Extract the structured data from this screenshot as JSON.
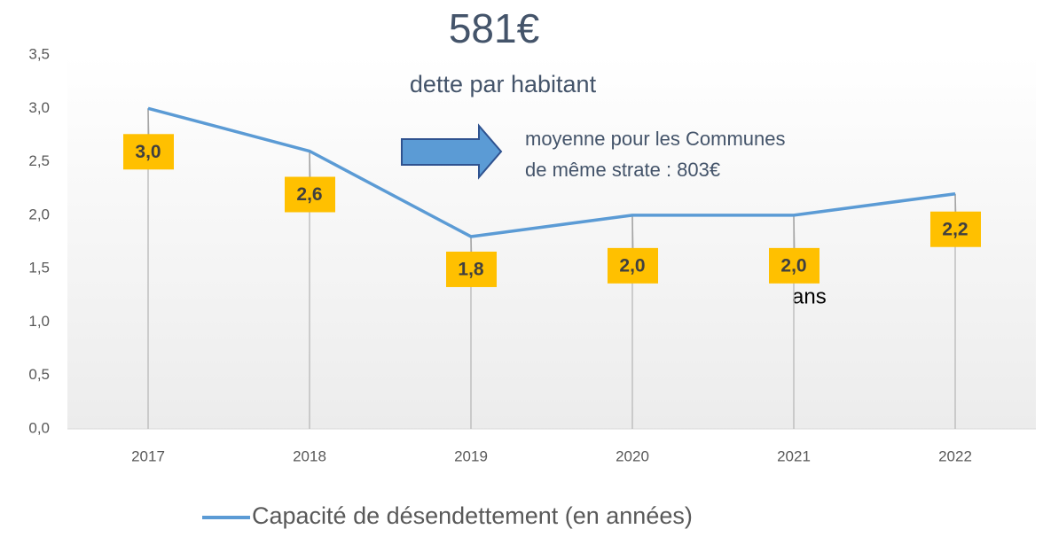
{
  "chart_data": {
    "type": "line",
    "title": "581€",
    "subtitle": "dette par habitant",
    "annotations": [
      "moyenne pour les Communes",
      "de même strate : 803€",
      "ans"
    ],
    "categories": [
      "2017",
      "2018",
      "2019",
      "2020",
      "2021",
      "2022"
    ],
    "series": [
      {
        "name": "Capacité de désendettement (en années)",
        "color": "#5b9bd5",
        "values": [
          3.0,
          2.6,
          1.8,
          2.0,
          2.0,
          2.2
        ],
        "value_labels": [
          "3,0",
          "2,6",
          "1,8",
          "2,0",
          "2,0",
          "2,2"
        ]
      }
    ],
    "ylim": [
      0,
      3.5
    ],
    "yticks": [
      {
        "value": 0,
        "label": "0,0"
      },
      {
        "value": 0.5,
        "label": "0,5"
      },
      {
        "value": 1,
        "label": "1,0"
      },
      {
        "value": 1.5,
        "label": "1,5"
      },
      {
        "value": 2,
        "label": "2,0"
      },
      {
        "value": 2.5,
        "label": "2,5"
      },
      {
        "value": 3,
        "label": "3,0"
      },
      {
        "value": 3.5,
        "label": "3,5"
      }
    ],
    "label_color": "#ffc000",
    "legend": "bottom"
  }
}
